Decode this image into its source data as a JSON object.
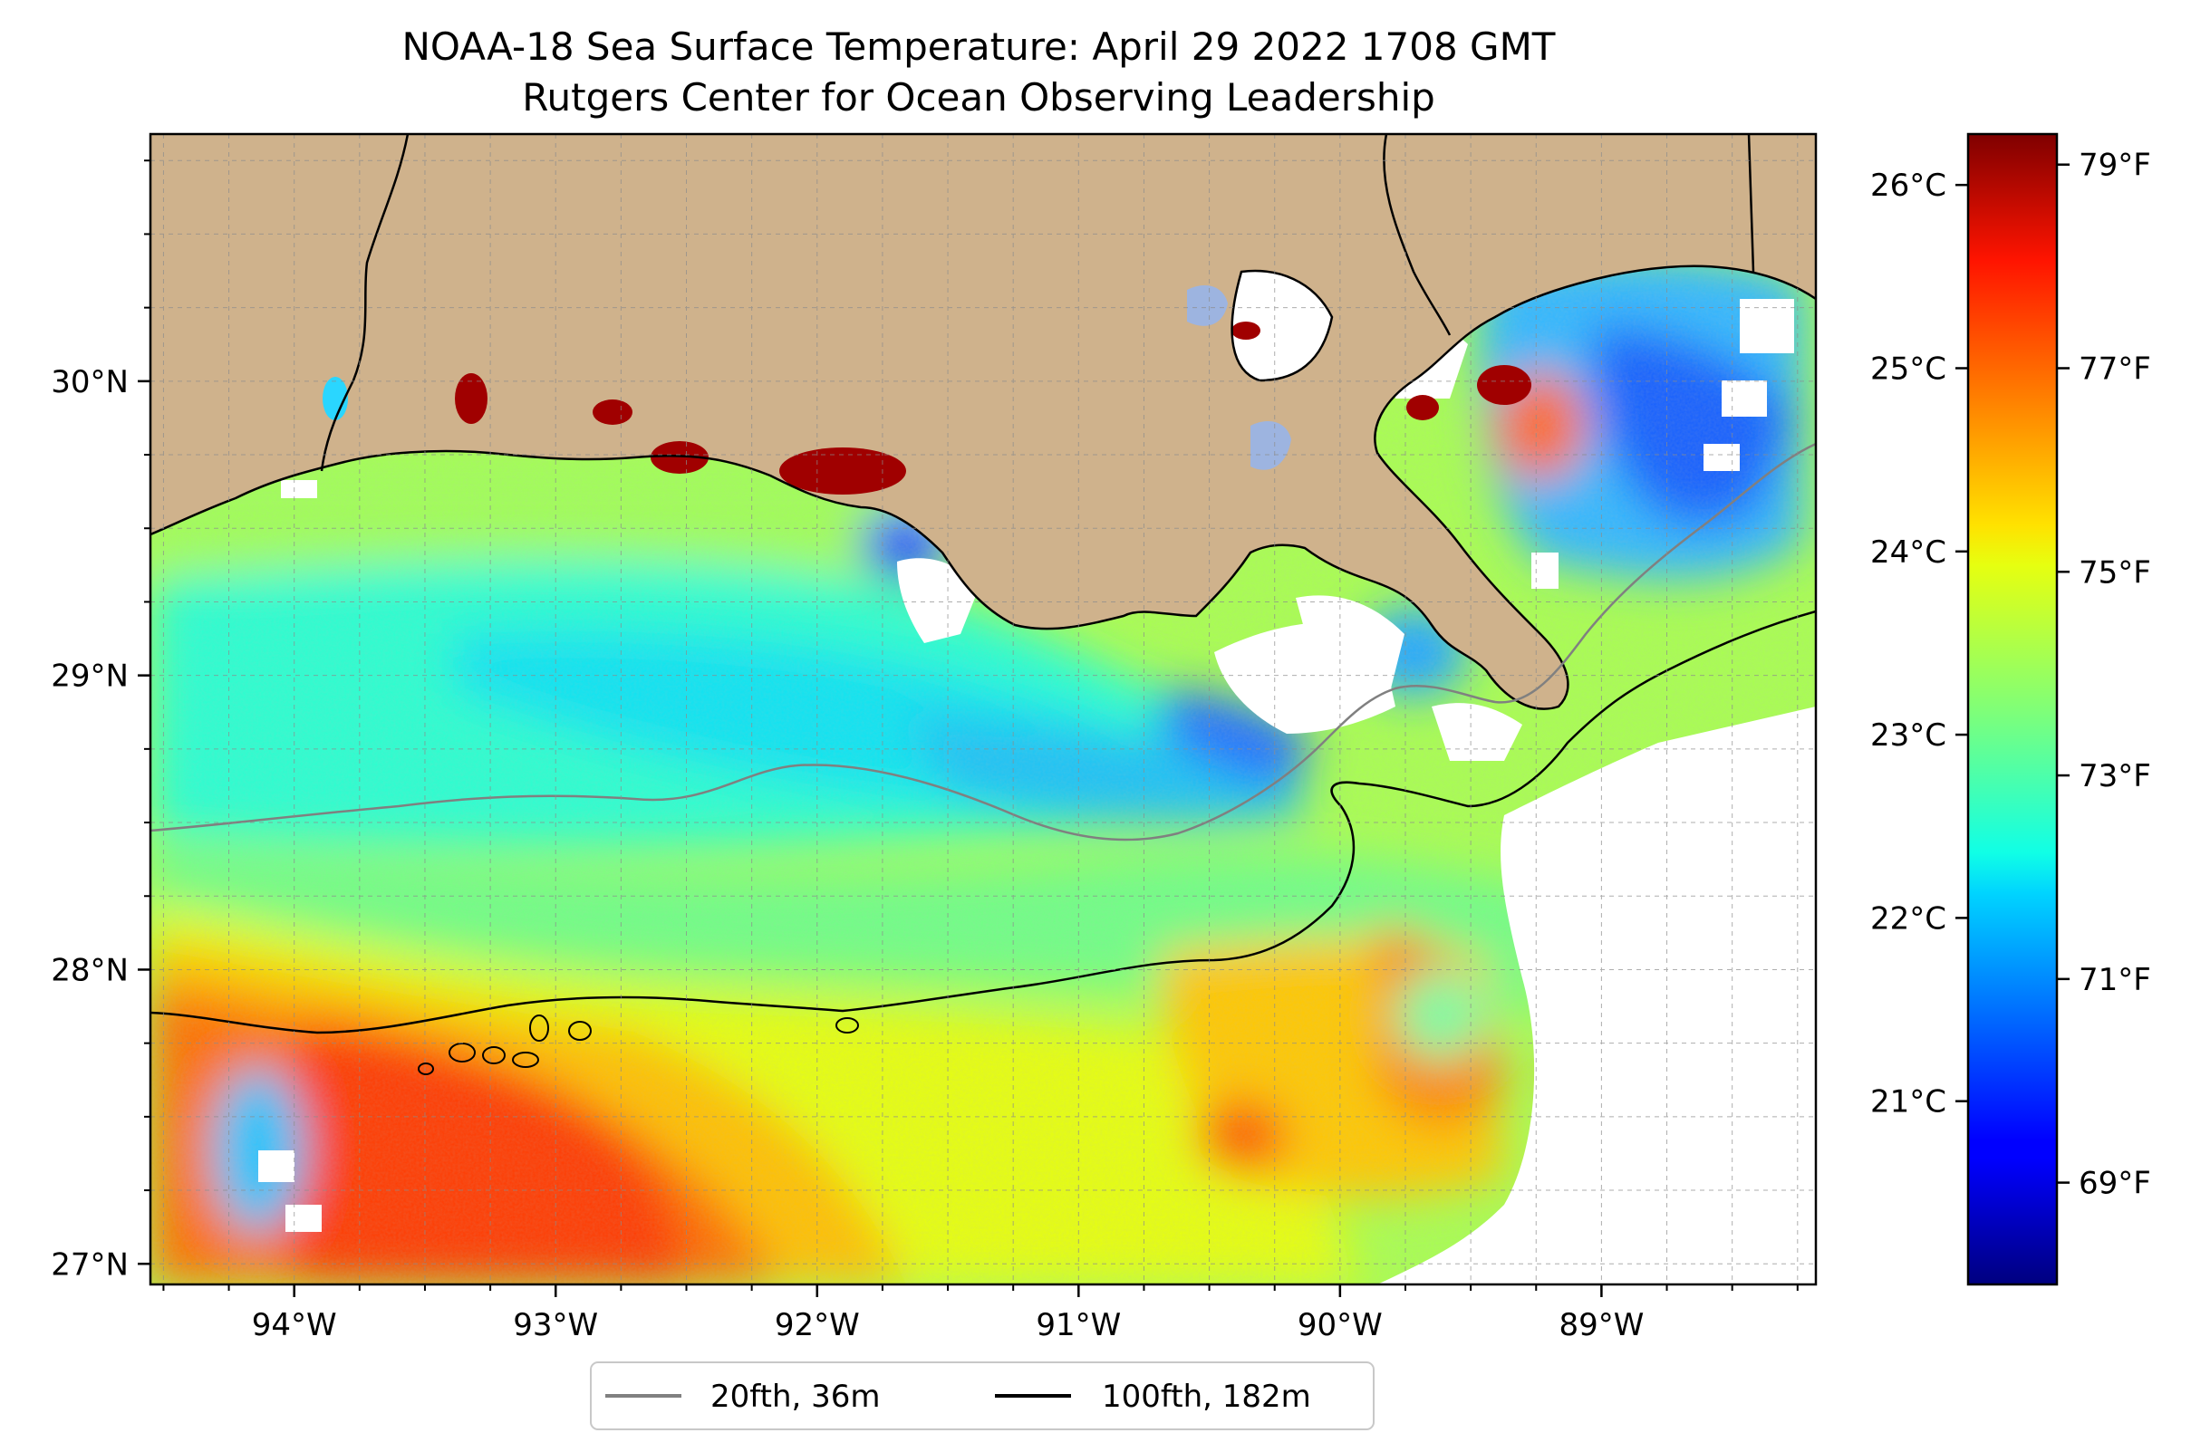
{
  "title": {
    "line1": "NOAA-18 Sea Surface Temperature: April 29 2022 1708 GMT",
    "line2": "Rutgers Center for Ocean Observing Leadership"
  },
  "map": {
    "lon_range": [
      -94.55,
      -88.18
    ],
    "lat_range": [
      26.93,
      30.84
    ],
    "lon_ticks": [
      {
        "value": -94,
        "label": "94°W"
      },
      {
        "value": -93,
        "label": "93°W"
      },
      {
        "value": -92,
        "label": "92°W"
      },
      {
        "value": -91,
        "label": "91°W"
      },
      {
        "value": -90,
        "label": "90°W"
      },
      {
        "value": -89,
        "label": "89°W"
      }
    ],
    "lat_ticks": [
      {
        "value": 27,
        "label": "27°N"
      },
      {
        "value": 28,
        "label": "28°N"
      },
      {
        "value": 29,
        "label": "29°N"
      },
      {
        "value": 30,
        "label": "30°N"
      }
    ],
    "gridlines": true,
    "colors": {
      "land": "#cfb28c",
      "no_data": "#ffffff",
      "lake": "#9db4e0",
      "coast": "#000000"
    }
  },
  "colorbar": {
    "colormap": "jet",
    "celsius_ticks": [
      {
        "value": 21,
        "label": "21°C"
      },
      {
        "value": 22,
        "label": "22°C"
      },
      {
        "value": 23,
        "label": "23°C"
      },
      {
        "value": 24,
        "label": "24°C"
      },
      {
        "value": 25,
        "label": "25°C"
      },
      {
        "value": 26,
        "label": "26°C"
      }
    ],
    "fahrenheit_ticks": [
      {
        "value": 69,
        "label": "69°F"
      },
      {
        "value": 71,
        "label": "71°F"
      },
      {
        "value": 73,
        "label": "73°F"
      },
      {
        "value": 75,
        "label": "75°F"
      },
      {
        "value": 77,
        "label": "77°F"
      },
      {
        "value": 79,
        "label": "79°F"
      }
    ],
    "range_f": [
      68.0,
      79.3
    ]
  },
  "legend": {
    "position": "bottom-center",
    "items": [
      {
        "label": "20fth, 36m",
        "color": "#808080"
      },
      {
        "label": "100fth, 182m",
        "color": "#000000"
      }
    ]
  }
}
